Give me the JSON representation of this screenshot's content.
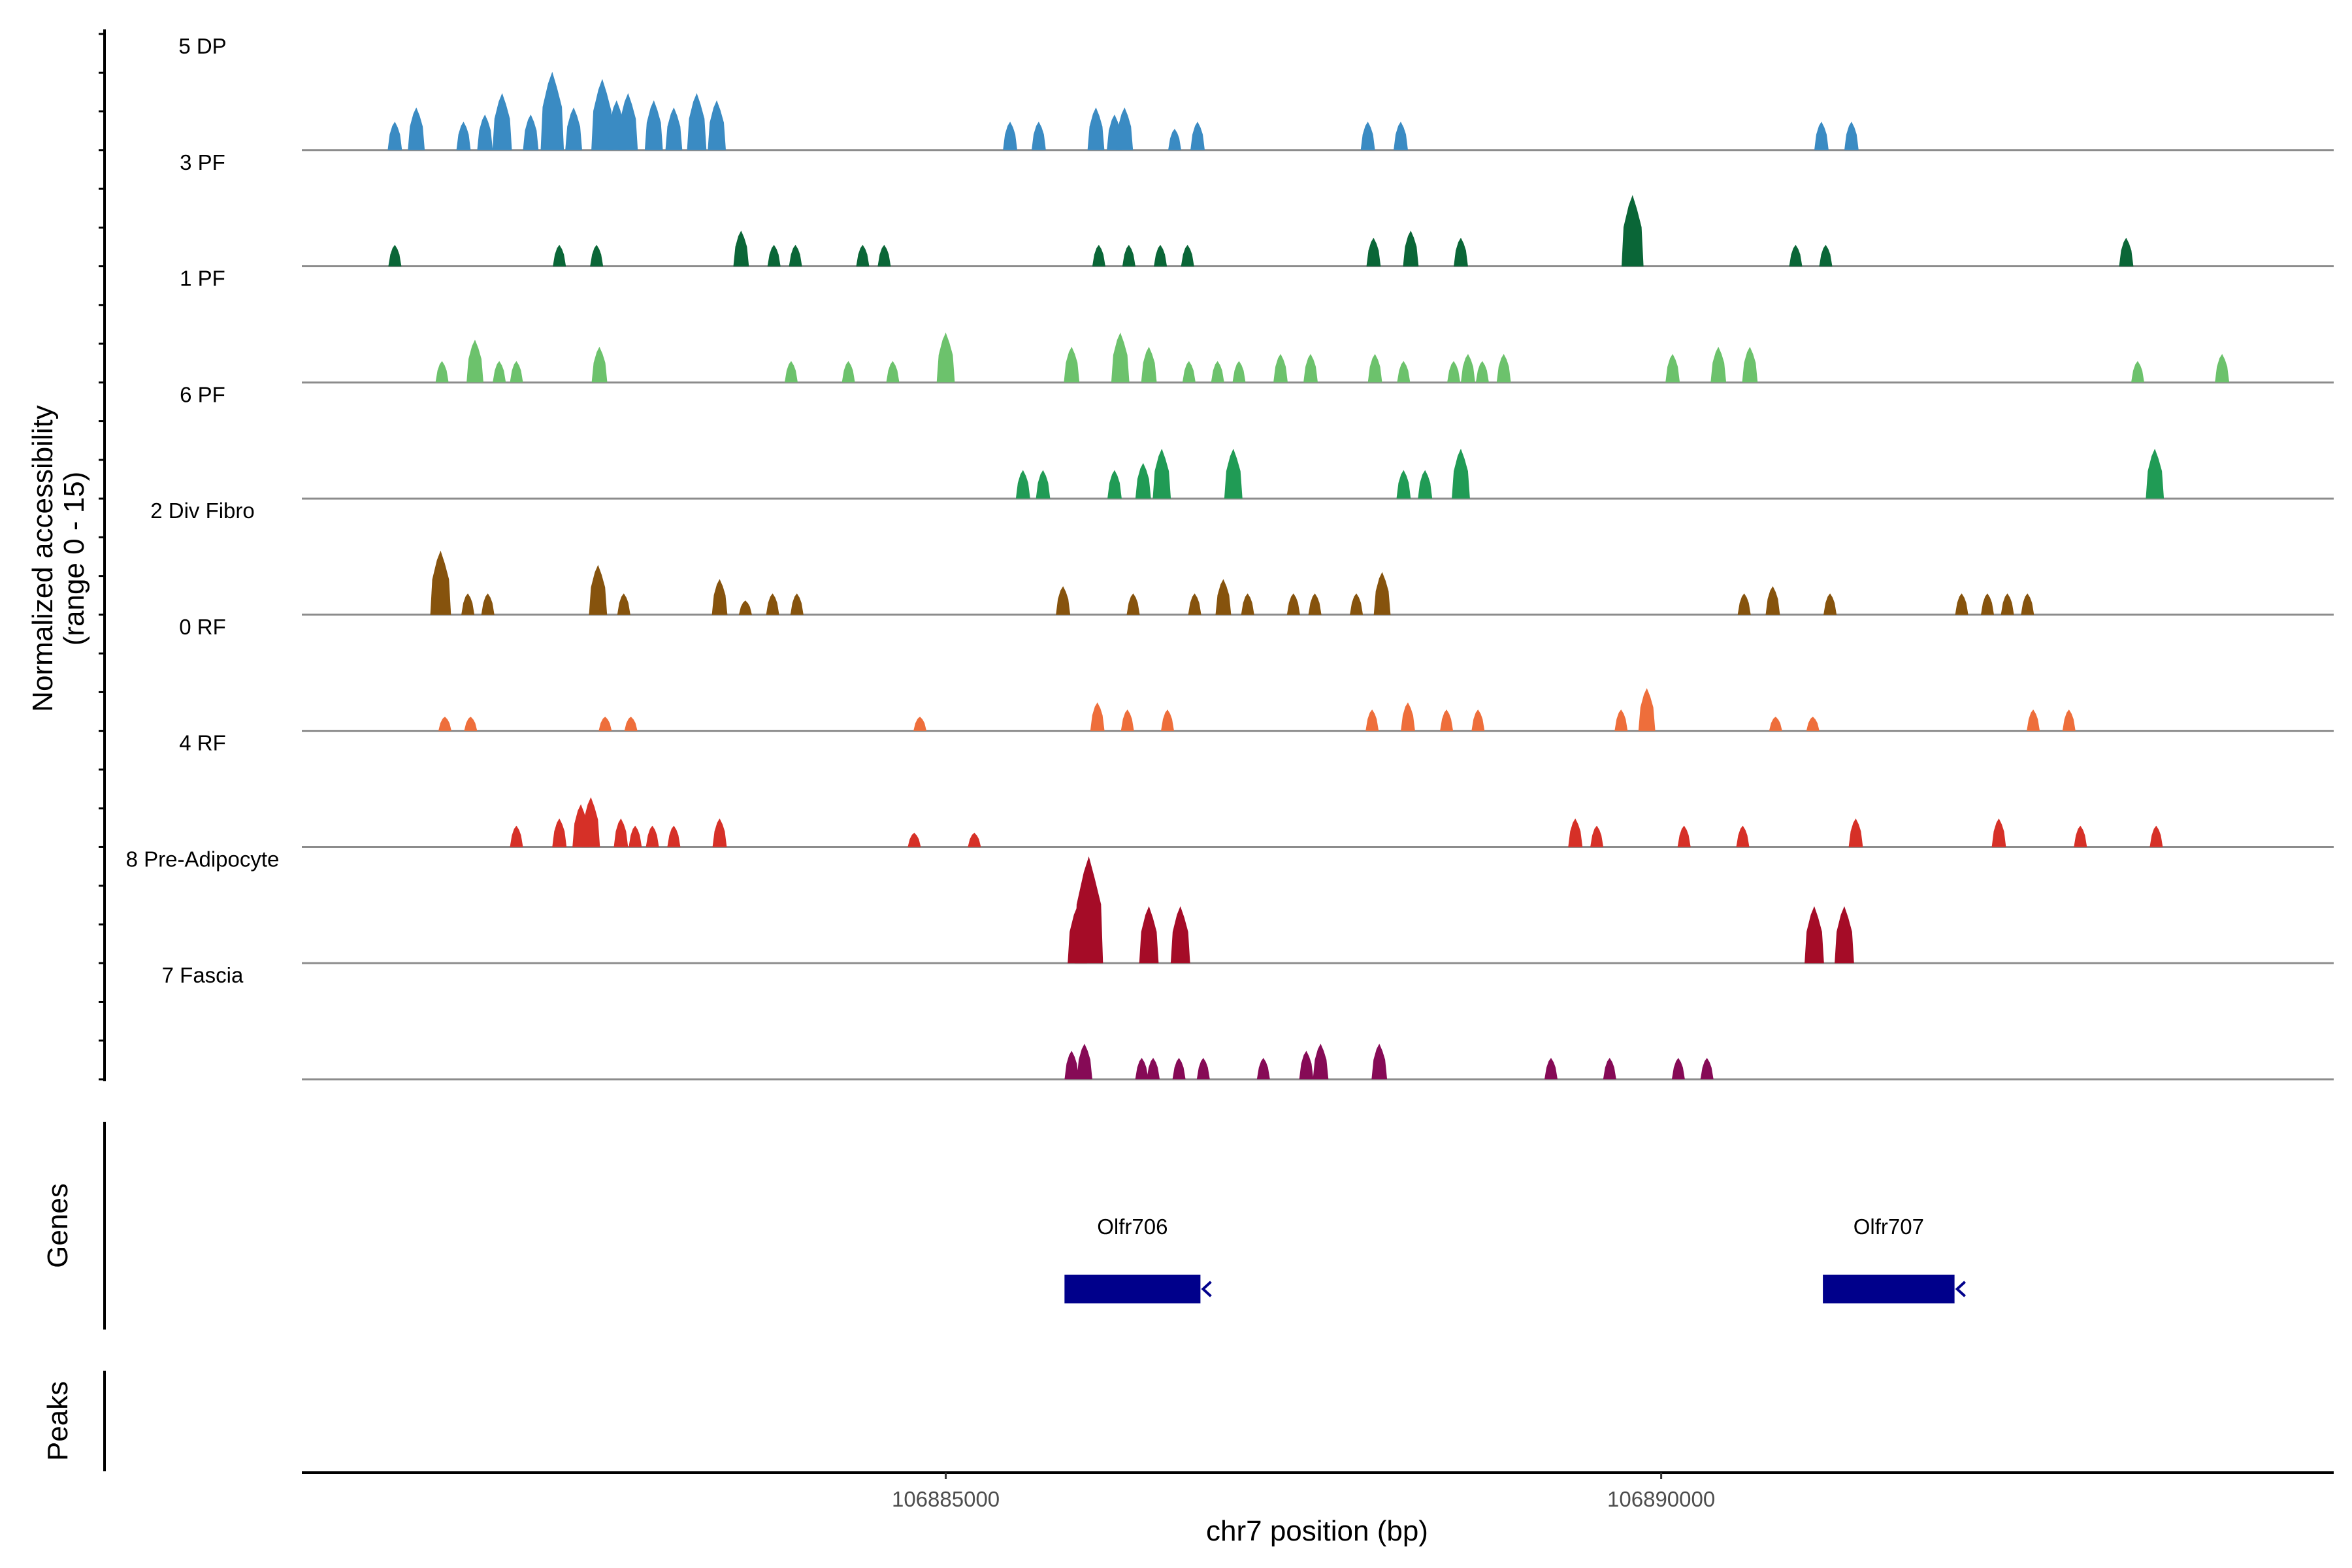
{
  "chart_data": {
    "type": "area",
    "xlabel": "chr7 position (bp)",
    "ylabel_line1": "Normalized accessibility",
    "ylabel_line2": "(range 0 - 15)",
    "xlim": [
      106880500,
      106894700
    ],
    "ylim": [
      0,
      15
    ],
    "x_ticks": [
      106885000,
      106890000
    ],
    "x_tick_labels": [
      "106885000",
      "106890000"
    ],
    "series": [
      {
        "name": "5 DP",
        "color": "#3a8bc3",
        "peaks": [
          [
            106881150,
            4
          ],
          [
            106881300,
            6
          ],
          [
            106881630,
            4
          ],
          [
            106881780,
            5
          ],
          [
            106881900,
            8
          ],
          [
            106882100,
            5
          ],
          [
            106882250,
            11
          ],
          [
            106882400,
            6
          ],
          [
            106882600,
            10
          ],
          [
            106882700,
            7
          ],
          [
            106882780,
            8
          ],
          [
            106882960,
            7
          ],
          [
            106883100,
            6
          ],
          [
            106883260,
            8
          ],
          [
            106883400,
            7
          ],
          [
            106885450,
            4
          ],
          [
            106885650,
            4
          ],
          [
            106886050,
            6
          ],
          [
            106886180,
            5
          ],
          [
            106886250,
            6
          ],
          [
            106886600,
            3
          ],
          [
            106886760,
            4
          ],
          [
            106887950,
            4
          ],
          [
            106888180,
            4
          ],
          [
            106891120,
            4
          ],
          [
            106891330,
            4
          ]
        ]
      },
      {
        "name": "3 PF",
        "color": "#0a6637",
        "peaks": [
          [
            106881150,
            3
          ],
          [
            106882300,
            3
          ],
          [
            106882560,
            3
          ],
          [
            106883570,
            5
          ],
          [
            106883800,
            3
          ],
          [
            106883950,
            3
          ],
          [
            106884420,
            3
          ],
          [
            106884570,
            3
          ],
          [
            106886070,
            3
          ],
          [
            106886280,
            3
          ],
          [
            106886500,
            3
          ],
          [
            106886690,
            3
          ],
          [
            106887990,
            4
          ],
          [
            106888250,
            5
          ],
          [
            106888600,
            4
          ],
          [
            106889800,
            10
          ],
          [
            106890940,
            3
          ],
          [
            106891150,
            3
          ],
          [
            106893250,
            4
          ]
        ]
      },
      {
        "name": "1 PF",
        "color": "#6cc26c",
        "peaks": [
          [
            106881480,
            3
          ],
          [
            106881710,
            6
          ],
          [
            106881880,
            3
          ],
          [
            106882000,
            3
          ],
          [
            106882580,
            5
          ],
          [
            106883920,
            3
          ],
          [
            106884320,
            3
          ],
          [
            106884630,
            3
          ],
          [
            106885000,
            7
          ],
          [
            106885880,
            5
          ],
          [
            106886220,
            7
          ],
          [
            106886420,
            5
          ],
          [
            106886700,
            3
          ],
          [
            106886900,
            3
          ],
          [
            106887050,
            3
          ],
          [
            106887340,
            4
          ],
          [
            106887550,
            4
          ],
          [
            106888000,
            4
          ],
          [
            106888200,
            3
          ],
          [
            106888550,
            3
          ],
          [
            106888650,
            4
          ],
          [
            106888750,
            3
          ],
          [
            106888900,
            4
          ],
          [
            106890080,
            4
          ],
          [
            106890400,
            5
          ],
          [
            106890620,
            5
          ],
          [
            106893330,
            3
          ],
          [
            106893920,
            4
          ]
        ]
      },
      {
        "name": "6 PF",
        "color": "#209b55",
        "peaks": [
          [
            106885540,
            4
          ],
          [
            106885680,
            4
          ],
          [
            106886180,
            4
          ],
          [
            106886380,
            5
          ],
          [
            106886510,
            7
          ],
          [
            106887010,
            7
          ],
          [
            106888200,
            4
          ],
          [
            106888350,
            4
          ],
          [
            106888600,
            7
          ],
          [
            106893450,
            7
          ]
        ]
      },
      {
        "name": "2 Div Fibro",
        "color": "#86530d",
        "peaks": [
          [
            106881470,
            9
          ],
          [
            106881660,
            3
          ],
          [
            106881800,
            3
          ],
          [
            106882570,
            7
          ],
          [
            106882750,
            3
          ],
          [
            106883420,
            5
          ],
          [
            106883600,
            2
          ],
          [
            106883790,
            3
          ],
          [
            106883960,
            3
          ],
          [
            106885820,
            4
          ],
          [
            106886310,
            3
          ],
          [
            106886740,
            3
          ],
          [
            106886940,
            5
          ],
          [
            106887110,
            3
          ],
          [
            106887430,
            3
          ],
          [
            106887580,
            3
          ],
          [
            106887870,
            3
          ],
          [
            106888050,
            6
          ],
          [
            106890580,
            3
          ],
          [
            106890780,
            4
          ],
          [
            106891180,
            3
          ],
          [
            106892100,
            3
          ],
          [
            106892280,
            3
          ],
          [
            106892420,
            3
          ],
          [
            106892560,
            3
          ]
        ]
      },
      {
        "name": "0 RF",
        "color": "#ee6e3b",
        "peaks": [
          [
            106881500,
            2
          ],
          [
            106881680,
            2
          ],
          [
            106882620,
            2
          ],
          [
            106882800,
            2
          ],
          [
            106884820,
            2
          ],
          [
            106886060,
            4
          ],
          [
            106886270,
            3
          ],
          [
            106886550,
            3
          ],
          [
            106887980,
            3
          ],
          [
            106888230,
            4
          ],
          [
            106888500,
            3
          ],
          [
            106888720,
            3
          ],
          [
            106889720,
            3
          ],
          [
            106889900,
            6
          ],
          [
            106890800,
            2
          ],
          [
            106891060,
            2
          ],
          [
            106892600,
            3
          ],
          [
            106892850,
            3
          ]
        ]
      },
      {
        "name": "4 RF",
        "color": "#d63027",
        "peaks": [
          [
            106882000,
            3
          ],
          [
            106882300,
            4
          ],
          [
            106882450,
            6
          ],
          [
            106882520,
            7
          ],
          [
            106882730,
            4
          ],
          [
            106882830,
            3
          ],
          [
            106882950,
            3
          ],
          [
            106883100,
            3
          ],
          [
            106883420,
            4
          ],
          [
            106884780,
            2
          ],
          [
            106885200,
            2
          ],
          [
            106889400,
            4
          ],
          [
            106889550,
            3
          ],
          [
            106890160,
            3
          ],
          [
            106890570,
            3
          ],
          [
            106891360,
            4
          ],
          [
            106892360,
            4
          ],
          [
            106892930,
            3
          ],
          [
            106893460,
            3
          ]
        ]
      },
      {
        "name": "8 Pre-Adipocyte",
        "color": "#a50c27",
        "peaks": [
          [
            106885920,
            8
          ],
          [
            106886000,
            15
          ],
          [
            106886420,
            8
          ],
          [
            106886640,
            8
          ],
          [
            106891070,
            8
          ],
          [
            106891280,
            8
          ]
        ]
      },
      {
        "name": "7 Fascia",
        "color": "#860a56",
        "peaks": [
          [
            106885880,
            4
          ],
          [
            106885970,
            5
          ],
          [
            106886370,
            3
          ],
          [
            106886450,
            3
          ],
          [
            106886630,
            3
          ],
          [
            106886800,
            3
          ],
          [
            106887220,
            3
          ],
          [
            106887520,
            4
          ],
          [
            106887620,
            5
          ],
          [
            106888030,
            5
          ],
          [
            106889230,
            3
          ],
          [
            106889640,
            3
          ],
          [
            106890120,
            3
          ],
          [
            106890320,
            3
          ]
        ]
      }
    ],
    "genes": {
      "title": "Genes",
      "color": "#00008b",
      "items": [
        {
          "name": "Olfr706",
          "start": 106885830,
          "end": 106886780,
          "strand": "-"
        },
        {
          "name": "Olfr707",
          "start": 106891130,
          "end": 106892050,
          "strand": "-"
        }
      ]
    },
    "peaks_track": {
      "title": "Peaks",
      "items": []
    }
  }
}
